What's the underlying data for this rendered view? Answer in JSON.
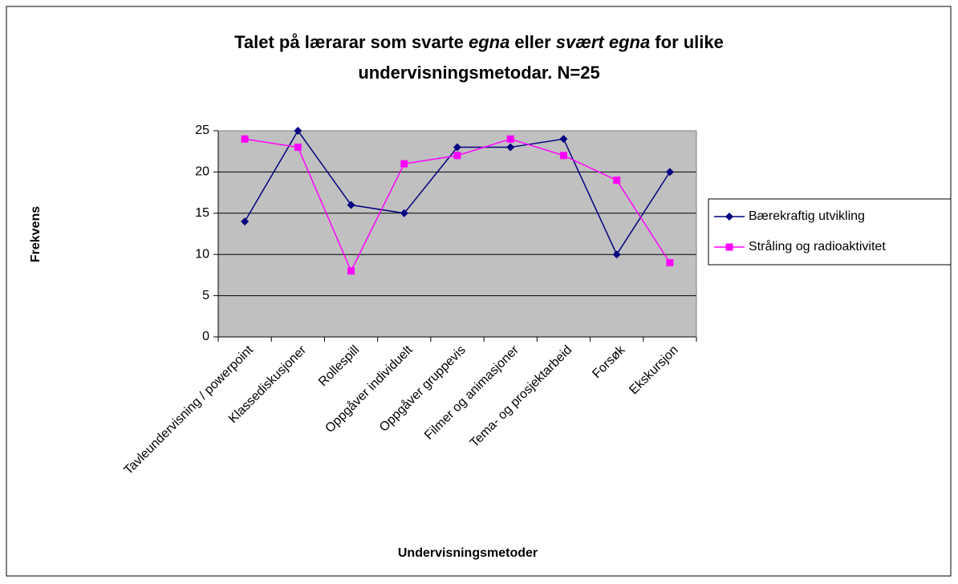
{
  "chart_data": {
    "type": "line",
    "title": [
      [
        {
          "text": "Talet på lærarar som svarte ",
          "italic": false
        },
        {
          "text": "egna",
          "italic": true
        },
        {
          "text": " eller ",
          "italic": false
        },
        {
          "text": "svært egna",
          "italic": true
        },
        {
          "text": " for ulike",
          "italic": false
        }
      ],
      [
        {
          "text": "undervisningsmetodar. N=25",
          "italic": false
        }
      ]
    ],
    "x_label": "Undervisningsmetoder",
    "y_label": "Frekvens",
    "categories": [
      "Tavleundervisning / powerpoint",
      "Klassediskusjoner",
      "Rollespill",
      "Oppgåver individuelt",
      "Oppgåver gruppevis",
      "Filmer og animasjoner",
      "Tema- og prosjektarbeid",
      "Forsøk",
      "Ekskursjon"
    ],
    "series": [
      {
        "name": "Bærekraftig utvikling",
        "color": "#000080",
        "marker": "diamond",
        "values": [
          14,
          25,
          16,
          15,
          23,
          23,
          24,
          10,
          20
        ]
      },
      {
        "name": "Stråling og radioaktivitet",
        "color": "#ff00ff",
        "marker": "square",
        "values": [
          24,
          23,
          8,
          21,
          22,
          24,
          22,
          19,
          9
        ]
      }
    ],
    "ylim": [
      0,
      25
    ],
    "yticks": [
      0,
      5,
      10,
      15,
      20,
      25
    ],
    "grid": true,
    "legend": "right"
  }
}
